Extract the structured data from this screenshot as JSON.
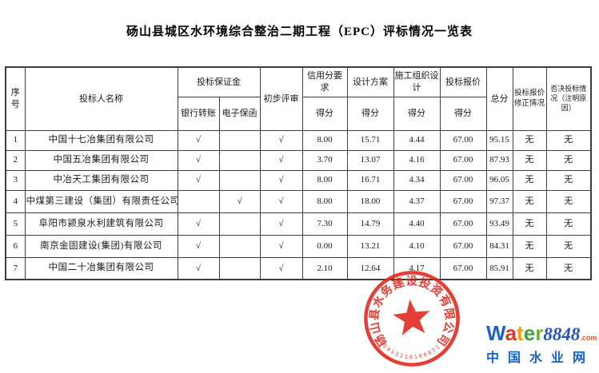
{
  "page": {
    "title": "砀山县城区水环境综合整治二期工程（EPC）评标情况一览表"
  },
  "table": {
    "col_names": [
      "row-no",
      "bidder-name",
      "bank-transfer-mark",
      "e-guarantee-mark",
      "preliminary-review-mark",
      "credit-score",
      "design-score",
      "construction-org-score",
      "bid-price-score",
      "total-score",
      "price-correction",
      "rejection-status"
    ],
    "headers": {
      "no": "序号",
      "bidder": "投标人名称",
      "bid_security": "投标保证金",
      "bank_transfer": "银行转账",
      "e_guarantee": "电子保函",
      "preliminary_review": "初步评审",
      "credit_score": "信用分要求",
      "design_plan": "设计方案",
      "construction_org": "施工组织设计",
      "bid_price": "投标报价",
      "score": "得分",
      "total": "总分",
      "price_correction": "投标报价修正情况",
      "rejection": "否决投标情况（注明原因）"
    },
    "rows": [
      [
        "1",
        "中国十七冶集团有限公司",
        "√",
        "",
        "√",
        "8.00",
        "15.71",
        "4.44",
        "67.00",
        "95.15",
        "无",
        "无"
      ],
      [
        "2",
        "中国五冶集团有限公司",
        "√",
        "",
        "√",
        "3.70",
        "13.07",
        "4.16",
        "67.00",
        "87.93",
        "无",
        "无"
      ],
      [
        "3",
        "中冶天工集团有限公司",
        "√",
        "",
        "√",
        "8.00",
        "16.71",
        "4.34",
        "67.00",
        "96.05",
        "无",
        "无"
      ],
      [
        "4",
        "中煤第三建设（集团）有限责任公司",
        "",
        "√",
        "√",
        "8.00",
        "18.00",
        "4.37",
        "67.00",
        "97.37",
        "无",
        "无"
      ],
      [
        "5",
        "阜阳市颍泉水利建筑有限公司",
        "√",
        "",
        "√",
        "7.30",
        "14.79",
        "4.40",
        "67.00",
        "93.49",
        "无",
        "无"
      ],
      [
        "6",
        "南京金固建设(集团)有限公司",
        "√",
        "",
        "√",
        "0.00",
        "13.21",
        "4.10",
        "67.00",
        "84.31",
        "无",
        "无"
      ],
      [
        "7",
        "中国二十冶集团有限公司",
        "√",
        "",
        "√",
        "2.10",
        "12.64",
        "4.17",
        "67.00",
        "85.91",
        "无",
        "无"
      ]
    ]
  },
  "stamp": {
    "company": "砀山县水务建设投资有限公司",
    "code": "3413210100871",
    "color": "#e0251b"
  },
  "logo": {
    "letters": [
      {
        "ch": "W",
        "color": "#1e63c4"
      },
      {
        "ch": "a",
        "color": "#e2332b"
      },
      {
        "ch": "t",
        "color": "#f59a00"
      },
      {
        "ch": "e",
        "color": "#3ca23c"
      },
      {
        "ch": "r",
        "color": "#68b52f"
      }
    ],
    "number": "8848",
    "number_color": "#2a52be",
    "domain": ".com",
    "domain_color": "#e4501e",
    "site_name": "中国水业网",
    "site_color": "#1761c5"
  }
}
